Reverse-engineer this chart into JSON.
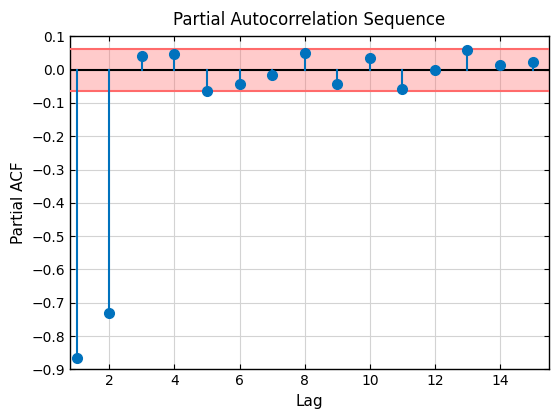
{
  "title": "Partial Autocorrelation Sequence",
  "xlabel": "Lag",
  "ylabel": "Partial ACF",
  "lags": [
    1,
    2,
    3,
    4,
    5,
    6,
    7,
    8,
    9,
    10,
    11,
    12,
    13,
    14,
    15
  ],
  "pacf": [
    -0.865,
    -0.73,
    0.04,
    0.048,
    -0.065,
    -0.042,
    -0.015,
    0.05,
    -0.042,
    0.035,
    -0.058,
    -0.002,
    0.058,
    0.013,
    0.022
  ],
  "confidence_band": 0.063,
  "ylim": [
    -0.9,
    0.1
  ],
  "xlim": [
    0.8,
    15.5
  ],
  "xticks": [
    2,
    4,
    6,
    8,
    10,
    12,
    14
  ],
  "yticks": [
    -0.9,
    -0.8,
    -0.7,
    -0.6,
    -0.5,
    -0.4,
    -0.3,
    -0.2,
    -0.1,
    0.0,
    0.1
  ],
  "stem_color": "#0072BD",
  "marker_color": "#0072BD",
  "conf_band_color": "#FF6B6B",
  "conf_band_alpha": 0.35,
  "zero_line_color": "#000000",
  "grid_color": "#D3D3D3",
  "background_color": "#FFFFFF",
  "title_fontsize": 12,
  "label_fontsize": 11
}
